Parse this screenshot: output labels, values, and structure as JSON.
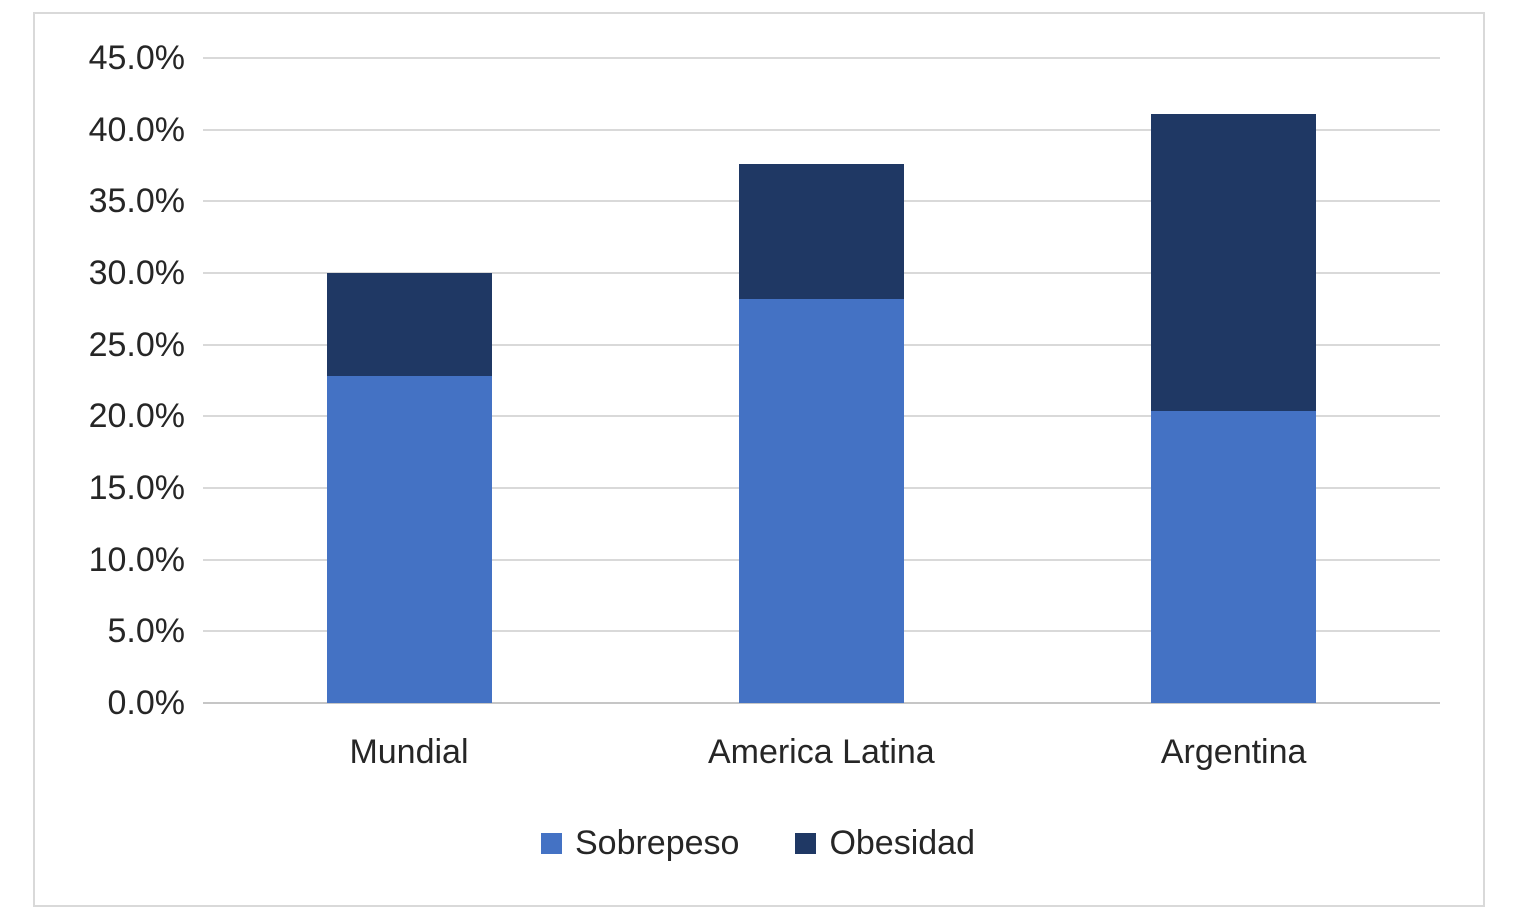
{
  "chart_data": {
    "type": "bar",
    "subtype": "stacked",
    "title": "",
    "xlabel": "",
    "ylabel": "",
    "categories": [
      "Mundial",
      "America Latina",
      "Argentina"
    ],
    "series": [
      {
        "name": "Sobrepeso",
        "color": "#4472C4",
        "values": [
          22.8,
          28.2,
          20.4
        ]
      },
      {
        "name": "Obesidad",
        "color": "#1F3864",
        "values": [
          7.2,
          9.4,
          20.7
        ]
      }
    ],
    "stacked_totals": [
      30.0,
      37.6,
      41.1
    ],
    "ylim": [
      0,
      45
    ],
    "y_tick_step": 5,
    "y_tick_labels": [
      "0.0%",
      "5.0%",
      "10.0%",
      "15.0%",
      "20.0%",
      "25.0%",
      "30.0%",
      "35.0%",
      "40.0%",
      "45.0%"
    ],
    "grid": true,
    "legend_position": "bottom"
  },
  "colors": {
    "gridline": "#d9d9d9",
    "axis_line": "#c6c6c6",
    "text": "#262626",
    "frame_border": "#d9d9d9",
    "background": "#ffffff"
  }
}
